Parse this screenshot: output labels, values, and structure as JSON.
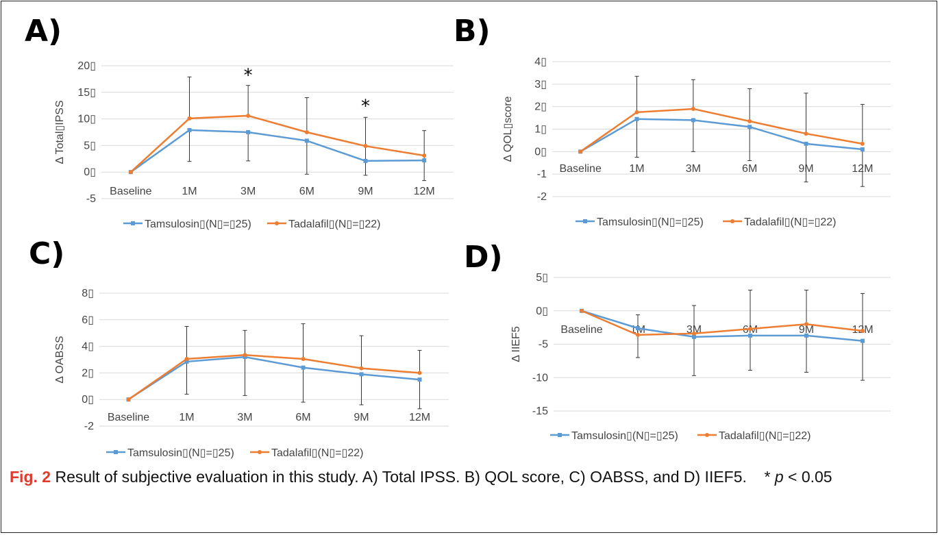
{
  "colors": {
    "tamsulosin": "#5b9bd5",
    "tadalafil": "#ed7d31"
  },
  "legend": {
    "tamsulosin": "Tamsulosin▯(N▯=▯25)",
    "tadalafil": "Tadalafil▯(N▯=▯22)"
  },
  "caption": {
    "fig": "Fig. 2",
    "text": " Result of subjective evaluation in this study. A) Total IPSS. B) QOL score, C) OABSS, and D) IIEF5.",
    "sig_prefix": "* ",
    "sig_p": "p",
    "sig_suffix": " < 0.05"
  },
  "chart_data": [
    {
      "panel": "A)",
      "type": "line",
      "ylabel": "Δ Total▯IPSS",
      "categories": [
        "Baseline",
        "1M",
        "3M",
        "6M",
        "9M",
        "12M"
      ],
      "ylim": [
        -5,
        20
      ],
      "yticks": [
        -5,
        0,
        5,
        10,
        15,
        20
      ],
      "ytick_labels": [
        "-5",
        "0▯",
        "5▯",
        "10▯",
        "15▯",
        "20▯"
      ],
      "series": [
        {
          "name": "Tamsulosin▯(N▯=▯25)",
          "color": "#5b9bd5",
          "marker": "square",
          "values": [
            0,
            7.9,
            7.5,
            5.9,
            2.1,
            2.2
          ],
          "error_upper": [
            null,
            null,
            null,
            null,
            null,
            null
          ],
          "error_lower": [
            null,
            2.0,
            2.1,
            -0.4,
            null,
            null
          ]
        },
        {
          "name": "Tadalafil▯(N▯=▯22)",
          "color": "#ed7d31",
          "marker": "circle",
          "values": [
            0,
            10.1,
            10.6,
            7.5,
            4.9,
            3.1
          ],
          "error_upper": [
            null,
            17.9,
            16.3,
            14.0,
            10.3,
            7.8
          ],
          "error_lower": [
            null,
            null,
            null,
            null,
            -0.6,
            -1.6
          ]
        }
      ],
      "annotations": [
        {
          "x": "3M",
          "y": 18.4,
          "text": "*"
        },
        {
          "x": "9M",
          "y": 12.6,
          "text": "*"
        }
      ]
    },
    {
      "panel": "B)",
      "type": "line",
      "ylabel": "Δ QOL▯score",
      "categories": [
        "Baseline",
        "1M",
        "3M",
        "6M",
        "9M",
        "12M"
      ],
      "ylim": [
        -2,
        4
      ],
      "yticks": [
        -2,
        -1,
        0,
        1,
        2,
        3,
        4
      ],
      "ytick_labels": [
        "-2",
        "-1",
        "0▯",
        "1▯",
        "2▯",
        "3▯",
        "4▯"
      ],
      "series": [
        {
          "name": "Tamsulosin▯(N▯=▯25)",
          "color": "#5b9bd5",
          "marker": "square",
          "values": [
            0,
            1.45,
            1.4,
            1.1,
            0.35,
            0.1
          ],
          "error_upper": [
            null,
            null,
            null,
            null,
            null,
            null
          ],
          "error_lower": [
            null,
            -0.25,
            0.0,
            -0.4,
            -1.35,
            -1.55
          ]
        },
        {
          "name": "Tadalafil▯(N▯=▯22)",
          "color": "#ed7d31",
          "marker": "circle",
          "values": [
            0,
            1.75,
            1.9,
            1.35,
            0.8,
            0.35
          ],
          "error_upper": [
            null,
            3.35,
            3.2,
            2.8,
            2.6,
            2.1
          ],
          "error_lower": [
            null,
            null,
            null,
            null,
            null,
            null
          ]
        }
      ]
    },
    {
      "panel": "C)",
      "type": "line",
      "ylabel": "Δ OABSS",
      "categories": [
        "Baseline",
        "1M",
        "3M",
        "6M",
        "9M",
        "12M"
      ],
      "ylim": [
        -2,
        8
      ],
      "yticks": [
        -2,
        0,
        2,
        4,
        6,
        8
      ],
      "ytick_labels": [
        "-2",
        "0▯",
        "2▯",
        "4▯",
        "6▯",
        "8▯"
      ],
      "series": [
        {
          "name": "Tamsulosin▯(N▯=▯25)",
          "color": "#5b9bd5",
          "marker": "square",
          "values": [
            0,
            2.85,
            3.2,
            2.4,
            1.9,
            1.5
          ],
          "error_upper": [
            null,
            null,
            null,
            null,
            null,
            null
          ],
          "error_lower": [
            null,
            0.4,
            0.3,
            -0.2,
            -0.4,
            -0.7
          ]
        },
        {
          "name": "Tadalafil▯(N▯=▯22)",
          "color": "#ed7d31",
          "marker": "circle",
          "values": [
            0,
            3.05,
            3.35,
            3.05,
            2.35,
            2.0
          ],
          "error_upper": [
            null,
            5.5,
            5.2,
            5.7,
            4.8,
            3.7
          ],
          "error_lower": [
            null,
            null,
            null,
            null,
            null,
            null
          ]
        }
      ]
    },
    {
      "panel": "D)",
      "type": "line",
      "ylabel": "Δ IIEF5",
      "categories": [
        "Baseline",
        "1M",
        "3M",
        "6M",
        "9M",
        "12M"
      ],
      "ylim": [
        -15,
        5
      ],
      "yticks": [
        -15,
        -10,
        -5,
        0,
        5
      ],
      "ytick_labels": [
        "-15",
        "-10",
        "-5",
        "0▯",
        "5▯"
      ],
      "series": [
        {
          "name": "Tamsulosin▯(N▯=▯25)",
          "color": "#5b9bd5",
          "marker": "square",
          "values": [
            0,
            -2.6,
            -3.9,
            -3.7,
            -3.7,
            -4.5
          ],
          "error_upper": [
            null,
            null,
            null,
            null,
            null,
            null
          ],
          "error_lower": [
            null,
            -7.0,
            -9.7,
            -8.9,
            -9.2,
            -10.4
          ]
        },
        {
          "name": "Tadalafil▯(N▯=▯22)",
          "color": "#ed7d31",
          "marker": "circle",
          "values": [
            0,
            -3.6,
            -3.4,
            -2.7,
            -2.0,
            -3.0
          ],
          "error_upper": [
            null,
            -0.6,
            0.8,
            3.1,
            3.1,
            2.6
          ],
          "error_lower": [
            null,
            null,
            null,
            null,
            null,
            null
          ]
        }
      ]
    }
  ]
}
